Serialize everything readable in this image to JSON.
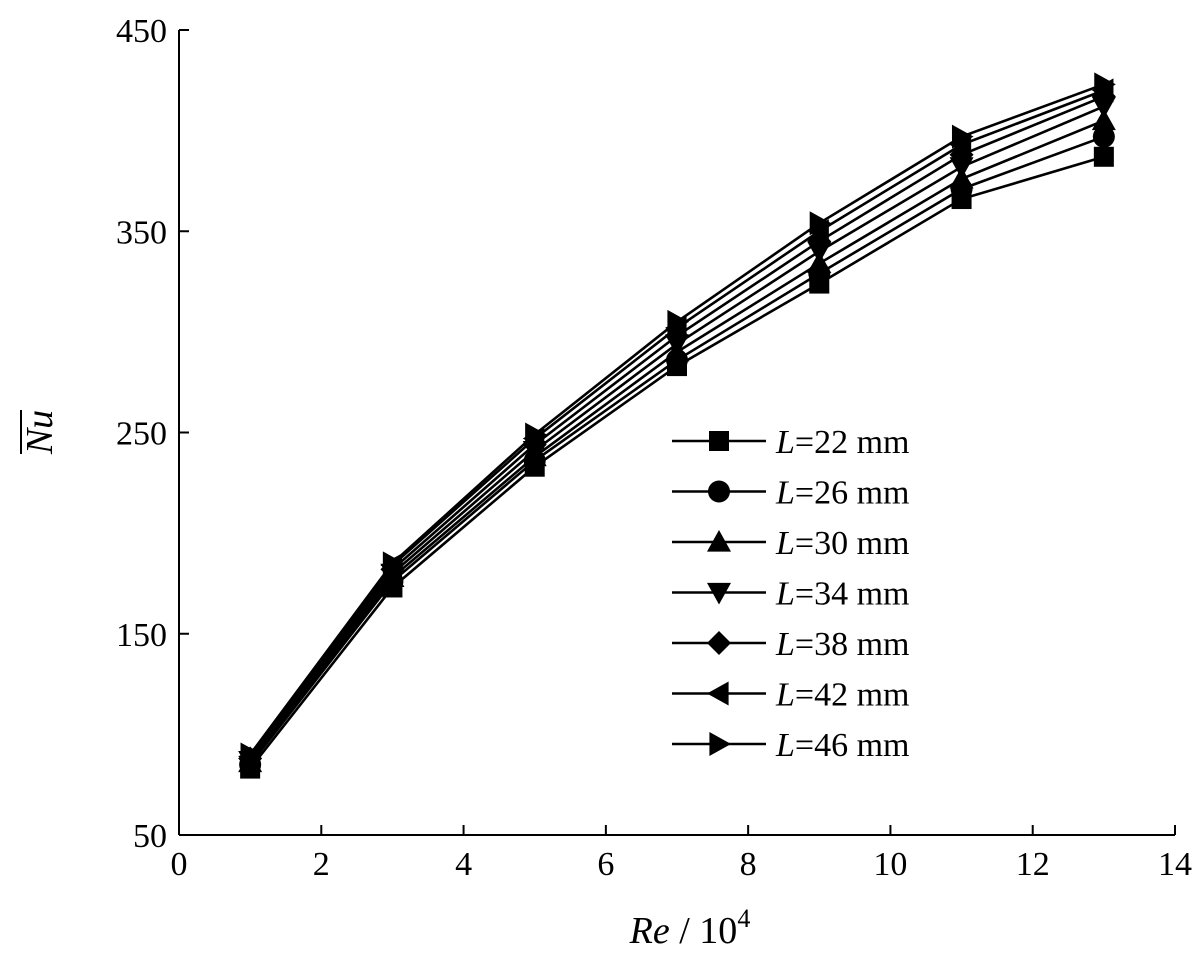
{
  "chart_data": {
    "type": "line",
    "title": "",
    "xlabel_var": "Re",
    "xlabel_rest": " / 10",
    "xlabel_exp": "4",
    "ylabel": "Nu",
    "ylabel_overline": true,
    "xlim": [
      0,
      14
    ],
    "ylim": [
      50,
      450
    ],
    "x_ticks": [
      0,
      2,
      4,
      6,
      8,
      10,
      12,
      14
    ],
    "x_tick_labels": [
      "0",
      "2",
      "4",
      "6",
      "8",
      "10",
      "12",
      "14"
    ],
    "y_ticks": [
      50,
      150,
      250,
      350,
      450
    ],
    "y_tick_labels": [
      "50",
      "150",
      "250",
      "350",
      "450"
    ],
    "legend_position": "center-right",
    "grid": false,
    "x": [
      1,
      3,
      5,
      7,
      9,
      11,
      13
    ],
    "series": [
      {
        "name": "L=22 mm",
        "legend_var": "L",
        "legend_rest": "=22 mm",
        "marker": "square",
        "values": [
          83,
          173,
          233,
          283,
          324,
          366,
          387
        ]
      },
      {
        "name": "L=26 mm",
        "legend_var": "L",
        "legend_rest": "=26 mm",
        "marker": "circle",
        "values": [
          85,
          176,
          236,
          286,
          329,
          371,
          397
        ]
      },
      {
        "name": "L=30 mm",
        "legend_var": "L",
        "legend_rest": "=30 mm",
        "marker": "triangle-up",
        "values": [
          86,
          178,
          238,
          290,
          334,
          376,
          405
        ]
      },
      {
        "name": "L=34 mm",
        "legend_var": "L",
        "legend_rest": "=34 mm",
        "marker": "triangle-down",
        "values": [
          87,
          180,
          241,
          294,
          340,
          382,
          412
        ]
      },
      {
        "name": "L=38 mm",
        "legend_var": "L",
        "legend_rest": "=38 mm",
        "marker": "diamond",
        "values": [
          88,
          182,
          244,
          298,
          345,
          388,
          417
        ]
      },
      {
        "name": "L=42 mm",
        "legend_var": "L",
        "legend_rest": "=42 mm",
        "marker": "triangle-left",
        "values": [
          89,
          184,
          247,
          302,
          350,
          393,
          420
        ]
      },
      {
        "name": "L=46 mm",
        "legend_var": "L",
        "legend_rest": "=46 mm",
        "marker": "triangle-right",
        "values": [
          90,
          185,
          249,
          305,
          354,
          397,
          423
        ]
      }
    ]
  }
}
